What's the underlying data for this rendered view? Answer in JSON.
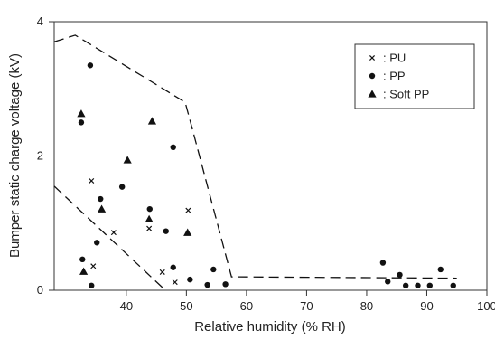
{
  "chart_data": {
    "type": "scatter",
    "xlabel": "Relative humidity (% RH)",
    "ylabel": "Bumper static charge voltage (kV)",
    "xlim": [
      28,
      100
    ],
    "ylim": [
      0,
      4
    ],
    "x_ticks": [
      40,
      50,
      60,
      70,
      80,
      90,
      100
    ],
    "y_ticks": [
      0,
      2,
      4
    ],
    "grid": false,
    "legend_position": "top-right",
    "series": [
      {
        "name": ": PU",
        "marker": "x",
        "points": [
          [
            34.2,
            1.63
          ],
          [
            34.5,
            0.36
          ],
          [
            37.9,
            0.86
          ],
          [
            43.8,
            0.92
          ],
          [
            46.0,
            0.27
          ],
          [
            48.1,
            0.12
          ],
          [
            50.3,
            1.19
          ]
        ]
      },
      {
        "name": ": PP",
        "marker": "circle",
        "points": [
          [
            32.5,
            2.5
          ],
          [
            34.0,
            3.35
          ],
          [
            32.7,
            0.46
          ],
          [
            34.2,
            0.07
          ],
          [
            35.1,
            0.71
          ],
          [
            35.7,
            1.36
          ],
          [
            39.3,
            1.54
          ],
          [
            43.9,
            1.21
          ],
          [
            46.6,
            0.88
          ],
          [
            47.8,
            2.13
          ],
          [
            47.8,
            0.34
          ],
          [
            50.6,
            0.16
          ],
          [
            53.5,
            0.08
          ],
          [
            54.5,
            0.31
          ],
          [
            56.5,
            0.09
          ],
          [
            82.7,
            0.41
          ],
          [
            83.5,
            0.13
          ],
          [
            85.5,
            0.23
          ],
          [
            86.5,
            0.07
          ],
          [
            88.5,
            0.07
          ],
          [
            90.5,
            0.07
          ],
          [
            92.3,
            0.31
          ],
          [
            94.4,
            0.07
          ]
        ]
      },
      {
        "name": ": Soft PP",
        "marker": "triangle",
        "points": [
          [
            32.5,
            2.63
          ],
          [
            32.9,
            0.28
          ],
          [
            35.9,
            1.21
          ],
          [
            40.2,
            1.94
          ],
          [
            43.8,
            1.06
          ],
          [
            44.3,
            2.52
          ],
          [
            50.2,
            0.86
          ]
        ]
      }
    ],
    "annotations": [
      {
        "type": "dashed-envelope",
        "points": [
          [
            28.0,
            3.7
          ],
          [
            31.5,
            3.8
          ],
          [
            49.8,
            2.8
          ],
          [
            51.0,
            2.4
          ],
          [
            57.5,
            0.2
          ],
          [
            95.0,
            0.18
          ]
        ]
      },
      {
        "type": "dashed-line",
        "points": [
          [
            28.0,
            1.55
          ],
          [
            46.5,
            0.0
          ]
        ]
      }
    ]
  }
}
